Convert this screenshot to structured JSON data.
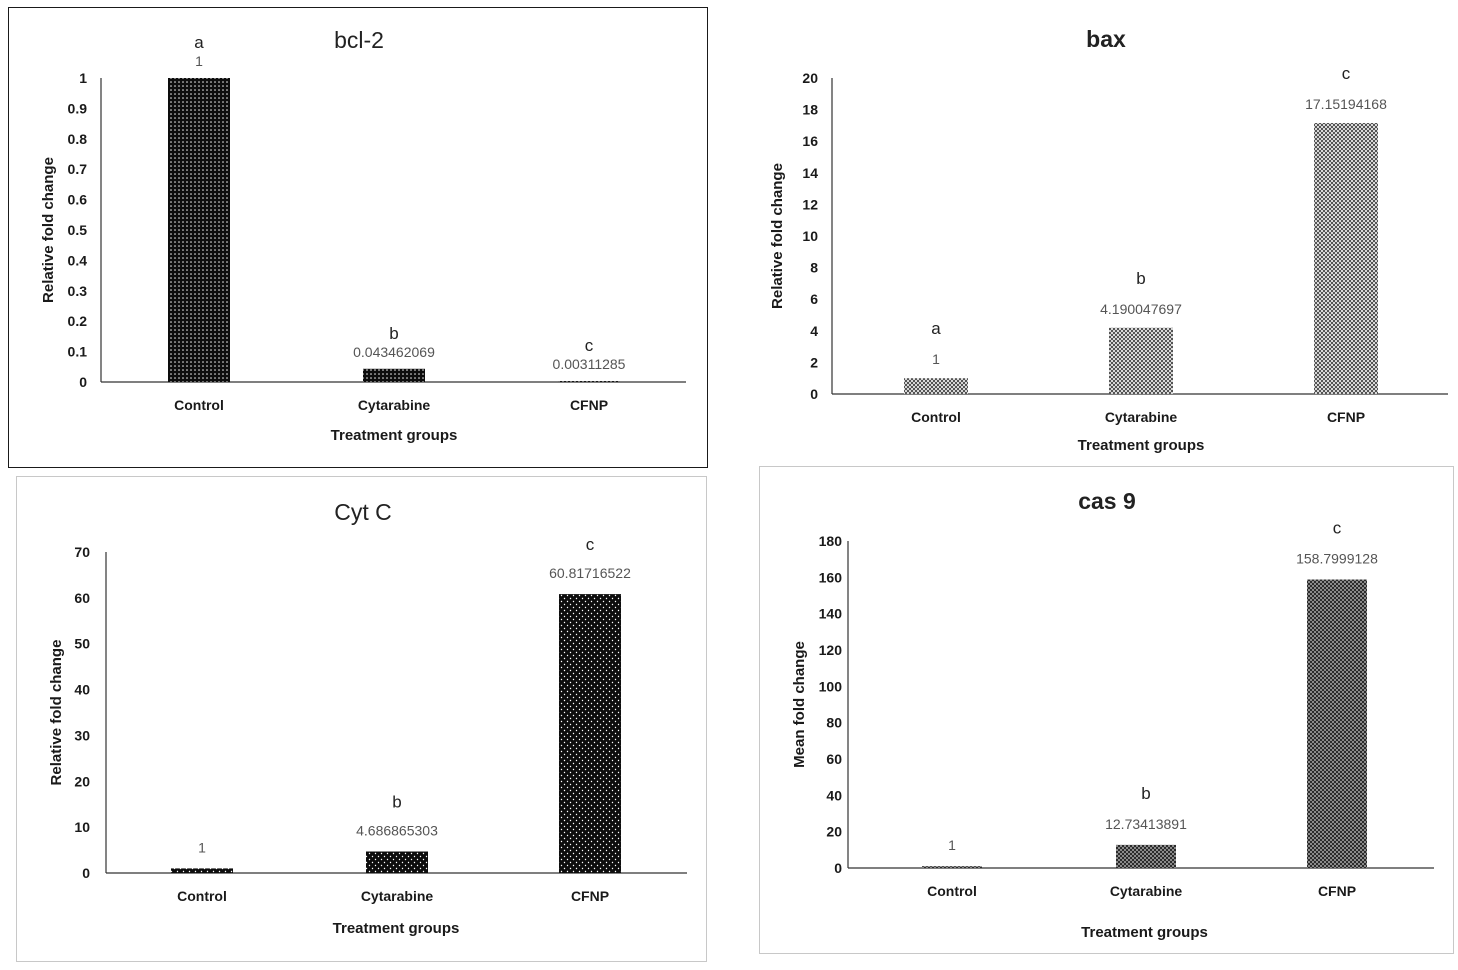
{
  "chart_data": [
    {
      "type": "bar",
      "title": "bcl-2",
      "xlabel": "Treatment groups",
      "ylabel": "Relative fold change",
      "categories": [
        "Control",
        "Cytarabine",
        "CFNP"
      ],
      "values": [
        1,
        0.043462069,
        0.00311285
      ],
      "value_labels": [
        "1",
        "0.043462069",
        "0.00311285"
      ],
      "significance": [
        "a",
        "b",
        "c"
      ],
      "ylim": [
        0,
        1
      ],
      "yticks": [
        "0",
        "0.1",
        "0.2",
        "0.3",
        "0.4",
        "0.5",
        "0.6",
        "0.7",
        "0.8",
        "0.9",
        "1"
      ],
      "pattern": "dots-dense",
      "grid": false
    },
    {
      "type": "bar",
      "title": "bax",
      "xlabel": "Treatment groups",
      "ylabel": "Relative fold change",
      "categories": [
        "Control",
        "Cytarabine",
        "CFNP"
      ],
      "values": [
        1,
        4.190047697,
        17.15194168
      ],
      "value_labels": [
        "1",
        "4.190047697",
        "17.15194168"
      ],
      "significance": [
        "a",
        "b",
        "c"
      ],
      "ylim": [
        0,
        20
      ],
      "yticks": [
        "0",
        "2",
        "4",
        "6",
        "8",
        "10",
        "12",
        "14",
        "16",
        "18",
        "20"
      ],
      "pattern": "crosshatch",
      "grid": false
    },
    {
      "type": "bar",
      "title": "Cyt C",
      "xlabel": "Treatment groups",
      "ylabel": "Relative fold change",
      "categories": [
        "Control",
        "Cytarabine",
        "CFNP"
      ],
      "values": [
        1,
        4.686865303,
        60.81716522
      ],
      "value_labels": [
        "1",
        "4.686865303",
        "60.81716522"
      ],
      "significance": [
        "",
        "b",
        "c"
      ],
      "ylim": [
        0,
        70
      ],
      "yticks": [
        "0",
        "10",
        "20",
        "30",
        "40",
        "50",
        "60",
        "70"
      ],
      "pattern": "dots-sparse",
      "grid": false
    },
    {
      "type": "bar",
      "title": "cas 9",
      "xlabel": "Treatment groups",
      "ylabel": "Mean fold change",
      "categories": [
        "Control",
        "Cytarabine",
        "CFNP"
      ],
      "values": [
        1,
        12.73413891,
        158.7999128
      ],
      "value_labels": [
        "1",
        "12.73413891",
        "158.7999128"
      ],
      "significance": [
        "",
        "b",
        "c"
      ],
      "ylim": [
        0,
        180
      ],
      "yticks": [
        "0",
        "20",
        "40",
        "60",
        "80",
        "100",
        "120",
        "140",
        "160",
        "180"
      ],
      "pattern": "checker",
      "grid": false
    }
  ]
}
